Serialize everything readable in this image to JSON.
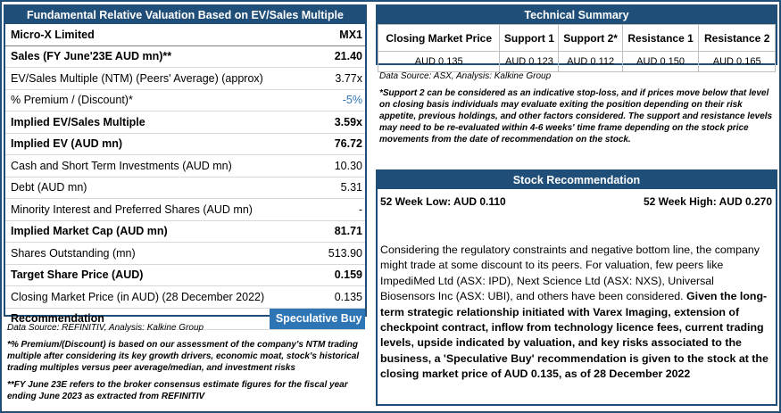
{
  "valuation": {
    "header": "Fundamental Relative Valuation Based on EV/Sales Multiple",
    "company": "Micro-X Limited",
    "ticker": "MX1",
    "rows": [
      {
        "label": "Sales (FY June'23E AUD mn)**",
        "value": "21.40"
      },
      {
        "label": "EV/Sales Multiple (NTM)  (Peers' Average) (approx)",
        "value": "3.77x"
      },
      {
        "label": "% Premium / (Discount)*",
        "value": "-5%"
      },
      {
        "label": "Implied EV/Sales Multiple",
        "value": "3.59x"
      },
      {
        "label": "Implied EV (AUD mn)",
        "value": "76.72"
      },
      {
        "label": "Cash and Short Term Investments (AUD mn)",
        "value": "10.30"
      },
      {
        "label": "Debt (AUD mn)",
        "value": "5.31"
      },
      {
        "label": "Minority Interest and Preferred Shares (AUD mn)",
        "value": "-"
      },
      {
        "label": "Implied Market Cap (AUD mn)",
        "value": "81.71"
      },
      {
        "label": "Shares Outstanding (mn)",
        "value": "513.90"
      },
      {
        "label": "Target Share Price (AUD)",
        "value": "0.159"
      },
      {
        "label": "Closing Market Price (in AUD) (28 December 2022)",
        "value": "0.135"
      },
      {
        "label": "Recommendation",
        "value": "Speculative Buy"
      }
    ],
    "source": "Data Source: REFINITIV, Analysis: Kalkine Group",
    "note1": "*% Premium/(Discount) is based on our assessment of the company's NTM trading multiple after considering its key growth drivers, economic moat, stock's historical trading multiples versus peer average/median, and investment risks",
    "note2": "**FY June 23E refers to the broker consensus estimate figures for the fiscal year ending June 2023  as extracted from REFINITIV"
  },
  "technical": {
    "header": "Technical Summary",
    "columns": [
      "Closing Market Price",
      "Support 1",
      "Support 2*",
      "Resistance 1",
      "Resistance 2"
    ],
    "values": [
      "AUD 0.135",
      "AUD 0.123",
      "AUD 0.112",
      "AUD 0.150",
      "AUD 0.165"
    ],
    "source": "Data Source: ASX, Analysis: Kalkine Group",
    "note": "*Support 2 can be considered as an indicative stop-loss, and if prices move below that level on closing basis individuals may evaluate exiting the position depending on their risk appetite, previous holdings, and other factors considered. The support and resistance levels may need to be re-evaluated within 4-6 weeks' time frame depending on the stock price movements from the date of recommendation on the stock."
  },
  "recommendation": {
    "header": "Stock Recommendation",
    "low": "52 Week Low: AUD 0.110",
    "high": "52 Week High: AUD 0.270",
    "text_plain": "Considering the regulatory constraints and negative bottom line, the company might trade at some discount to its peers. For valuation, few peers like ImpediMed Ltd (ASX: IPD), Next Science Ltd (ASX: NXS), Universal Biosensors Inc (ASX: UBI), and others have been considered. ",
    "text_bold": "Given the long-term strategic relationship initiated with Varex Imaging, extension of checkpoint contract, inflow from technology licence fees, current trading levels, upside indicated by valuation, and key risks associated to the business, a 'Speculative Buy' recommendation is given to the stock at the closing market price of AUD 0.135, as of 28 December 2022"
  }
}
